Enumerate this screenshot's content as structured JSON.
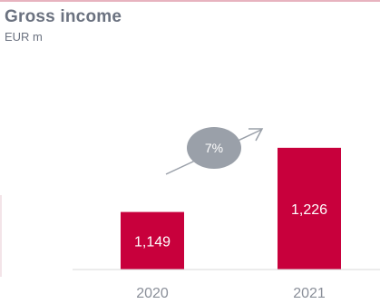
{
  "header": {
    "title": "Gross income",
    "subtitle": "EUR m"
  },
  "chart_data": {
    "type": "bar",
    "title": "Gross income",
    "subtitle": "EUR m",
    "categories": [
      "2020",
      "2021"
    ],
    "values": [
      1149,
      1226
    ],
    "value_labels": [
      "1,149",
      "1,226"
    ],
    "growth_label": "7%",
    "ylim": [
      1080,
      1240
    ],
    "grid": false,
    "legend": "none",
    "colors": {
      "bar": "#c8003c",
      "bar_text": "#ffffff",
      "axis_text": "#8a8f99",
      "baseline": "#d9d9d9",
      "bubble": "#9aa0a9",
      "bubble_text": "#ffffff",
      "arrow": "#9aa0a9"
    }
  }
}
